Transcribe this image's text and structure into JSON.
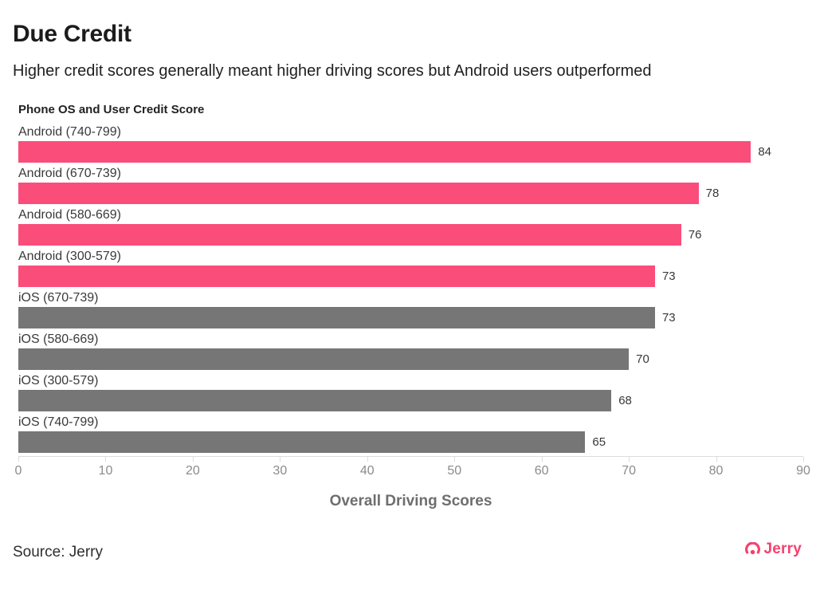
{
  "page": {
    "title": "Due Credit",
    "subtitle": "Higher credit scores generally meant higher driving scores but Android users outperformed"
  },
  "chart_data": {
    "type": "bar",
    "orientation": "horizontal",
    "title": "Phone OS and User Credit Score",
    "xlabel": "Overall Driving Scores",
    "xlim": [
      0,
      90
    ],
    "xticks": [
      0,
      10,
      20,
      30,
      40,
      50,
      60,
      70,
      80,
      90
    ],
    "categories": [
      "Android (740-799)",
      "Android (670-739)",
      "Android (580-669)",
      "Android (300-579)",
      "iOS (670-739)",
      "iOS (580-669)",
      "iOS (300-579)",
      "iOS (740-799)"
    ],
    "values": [
      84,
      78,
      76,
      73,
      73,
      70,
      68,
      65
    ],
    "groups": [
      "android",
      "android",
      "android",
      "android",
      "ios",
      "ios",
      "ios",
      "ios"
    ],
    "colors": {
      "android": "#FB4D7A",
      "ios": "#767676"
    },
    "grid": "off",
    "legend": "none"
  },
  "footer": {
    "source": "Source: Jerry",
    "brand": "Jerry",
    "brand_color": "#F7406E"
  }
}
